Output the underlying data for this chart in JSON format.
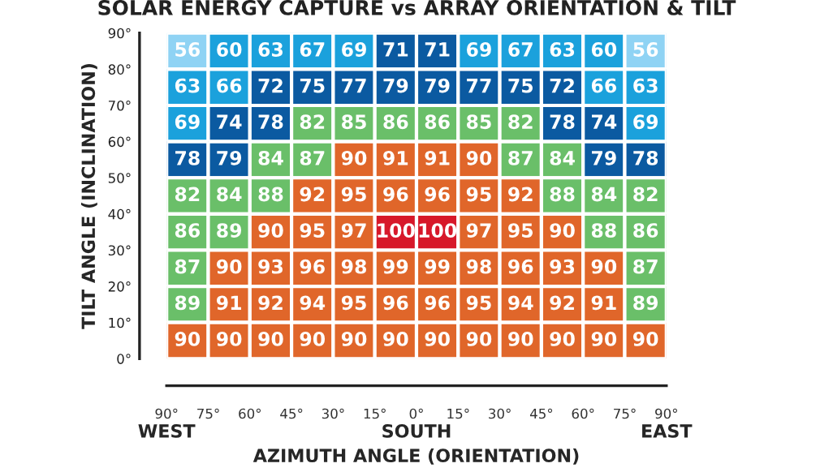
{
  "chart_data": {
    "type": "heatmap",
    "title": "SOLAR ENERGY CAPTURE vs ARRAY ORIENTATION & TILT",
    "xlabel": "AZIMUTH ANGLE (ORIENTATION)",
    "ylabel": "TILT ANGLE (INCLINATION)",
    "cells": [
      [
        56,
        60,
        63,
        67,
        69,
        71,
        71,
        69,
        67,
        63,
        60,
        56
      ],
      [
        63,
        66,
        72,
        75,
        77,
        79,
        79,
        77,
        75,
        72,
        66,
        63
      ],
      [
        69,
        74,
        78,
        82,
        85,
        86,
        86,
        85,
        82,
        78,
        74,
        69
      ],
      [
        78,
        79,
        84,
        87,
        90,
        91,
        91,
        90,
        87,
        84,
        79,
        78
      ],
      [
        82,
        84,
        88,
        92,
        95,
        96,
        96,
        95,
        92,
        88,
        84,
        82
      ],
      [
        86,
        89,
        90,
        95,
        97,
        100,
        100,
        97,
        95,
        90,
        88,
        86
      ],
      [
        87,
        90,
        93,
        96,
        98,
        99,
        99,
        98,
        96,
        93,
        90,
        87
      ],
      [
        89,
        91,
        92,
        94,
        95,
        96,
        96,
        95,
        94,
        92,
        91,
        89
      ],
      [
        90,
        90,
        90,
        90,
        90,
        90,
        90,
        90,
        90,
        90,
        90,
        90
      ]
    ],
    "colors": [
      [
        "#8fd3f4",
        "#1ba1dc",
        "#1ba1dc",
        "#1ba1dc",
        "#1ba1dc",
        "#0b5aa1",
        "#0b5aa1",
        "#1ba1dc",
        "#1ba1dc",
        "#1ba1dc",
        "#1ba1dc",
        "#8fd3f4"
      ],
      [
        "#1ba1dc",
        "#1ba1dc",
        "#0b5aa1",
        "#0b5aa1",
        "#0b5aa1",
        "#0b5aa1",
        "#0b5aa1",
        "#0b5aa1",
        "#0b5aa1",
        "#0b5aa1",
        "#1ba1dc",
        "#1ba1dc"
      ],
      [
        "#1ba1dc",
        "#0b5aa1",
        "#0b5aa1",
        "#6abf69",
        "#6abf69",
        "#6abf69",
        "#6abf69",
        "#6abf69",
        "#6abf69",
        "#0b5aa1",
        "#0b5aa1",
        "#1ba1dc"
      ],
      [
        "#0b5aa1",
        "#0b5aa1",
        "#6abf69",
        "#6abf69",
        "#e0662a",
        "#e0662a",
        "#e0662a",
        "#e0662a",
        "#6abf69",
        "#6abf69",
        "#0b5aa1",
        "#0b5aa1"
      ],
      [
        "#6abf69",
        "#6abf69",
        "#6abf69",
        "#e0662a",
        "#e0662a",
        "#e0662a",
        "#e0662a",
        "#e0662a",
        "#e0662a",
        "#6abf69",
        "#6abf69",
        "#6abf69"
      ],
      [
        "#6abf69",
        "#6abf69",
        "#e0662a",
        "#e0662a",
        "#e0662a",
        "#d7182a",
        "#d7182a",
        "#e0662a",
        "#e0662a",
        "#e0662a",
        "#6abf69",
        "#6abf69"
      ],
      [
        "#6abf69",
        "#e0662a",
        "#e0662a",
        "#e0662a",
        "#e0662a",
        "#e0662a",
        "#e0662a",
        "#e0662a",
        "#e0662a",
        "#e0662a",
        "#e0662a",
        "#6abf69"
      ],
      [
        "#6abf69",
        "#e0662a",
        "#e0662a",
        "#e0662a",
        "#e0662a",
        "#e0662a",
        "#e0662a",
        "#e0662a",
        "#e0662a",
        "#e0662a",
        "#e0662a",
        "#6abf69"
      ],
      [
        "#e0662a",
        "#e0662a",
        "#e0662a",
        "#e0662a",
        "#e0662a",
        "#e0662a",
        "#e0662a",
        "#e0662a",
        "#e0662a",
        "#e0662a",
        "#e0662a",
        "#e0662a"
      ]
    ],
    "xlim": [
      -90,
      90
    ],
    "xticks": [
      {
        "value": -90,
        "label": "90°"
      },
      {
        "value": -75,
        "label": "75°"
      },
      {
        "value": -60,
        "label": "60°"
      },
      {
        "value": -45,
        "label": "45°"
      },
      {
        "value": -30,
        "label": "30°"
      },
      {
        "value": -15,
        "label": "15°"
      },
      {
        "value": 0,
        "label": "0°"
      },
      {
        "value": 15,
        "label": "15°"
      },
      {
        "value": 30,
        "label": "30°"
      },
      {
        "value": 45,
        "label": "45°"
      },
      {
        "value": 60,
        "label": "60°"
      },
      {
        "value": 75,
        "label": "75°"
      },
      {
        "value": 90,
        "label": "90°"
      }
    ],
    "ylim": [
      0,
      90
    ],
    "yticks": [
      {
        "value": 0,
        "label": "0°"
      },
      {
        "value": 10,
        "label": "10°"
      },
      {
        "value": 20,
        "label": "20°"
      },
      {
        "value": 30,
        "label": "30°"
      },
      {
        "value": 40,
        "label": "40°"
      },
      {
        "value": 50,
        "label": "50°"
      },
      {
        "value": 60,
        "label": "60°"
      },
      {
        "value": 70,
        "label": "70°"
      },
      {
        "value": 80,
        "label": "80°"
      },
      {
        "value": 90,
        "label": "90°"
      }
    ],
    "annotations": [
      "WEST",
      "SOUTH",
      "EAST"
    ],
    "grid": false,
    "data_labels": true
  }
}
